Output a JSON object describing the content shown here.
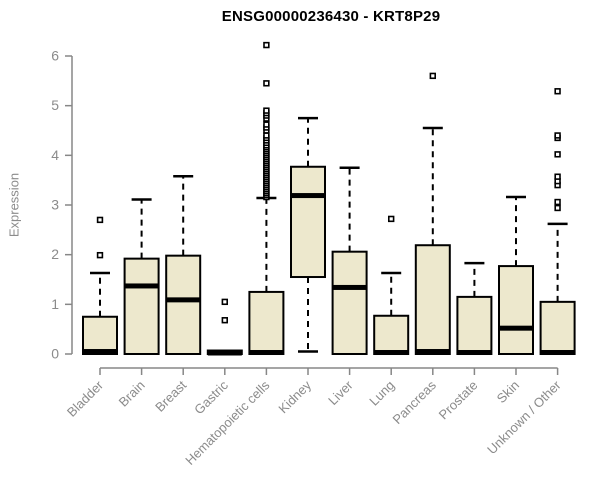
{
  "title": "ENSG00000236430 - KRT8P29",
  "colors": {
    "box_fill": "#ede8cd",
    "box_border": "#000000",
    "median": "#000000",
    "whisker": "#000000",
    "outlier_stroke": "#000000",
    "outlier_fill": "#ffffff",
    "axis_line": "#878787",
    "tick_label": "#8b8b8b",
    "title_color": "#000000",
    "background": "#ffffff"
  },
  "chart_data": {
    "type": "boxplot",
    "title": "ENSG00000236430 - KRT8P29",
    "xlabel": "",
    "ylabel": "Expression",
    "ylim": [
      0,
      6.3
    ],
    "yticks": [
      0,
      1,
      2,
      3,
      4,
      5,
      6
    ],
    "grid": false,
    "legend": "none",
    "categories": [
      "Bladder",
      "Brain",
      "Breast",
      "Gastric",
      "Hematopoietic cells",
      "Kidney",
      "Liver",
      "Lung",
      "Pancreas",
      "Prostate",
      "Skin",
      "Unknown / Other"
    ],
    "series": [
      {
        "name": "Bladder",
        "q1": 0,
        "median": 0.05,
        "q3": 0.75,
        "whisker_low": 0,
        "whisker_high": 1.63,
        "outliers": [
          1.99,
          2.7
        ]
      },
      {
        "name": "Brain",
        "q1": 0,
        "median": 1.37,
        "q3": 1.92,
        "whisker_low": 0,
        "whisker_high": 3.11,
        "outliers": []
      },
      {
        "name": "Breast",
        "q1": 0,
        "median": 1.09,
        "q3": 1.98,
        "whisker_low": 0,
        "whisker_high": 3.58,
        "outliers": []
      },
      {
        "name": "Gastric",
        "q1": 0,
        "median": 0.02,
        "q3": 0.07,
        "whisker_low": 0,
        "whisker_high": 0.07,
        "outliers": [
          0.68,
          1.05
        ]
      },
      {
        "name": "Hematopoietic cells",
        "q1": 0,
        "median": 0.03,
        "q3": 1.25,
        "whisker_low": 0,
        "whisker_high": 3.14,
        "outliers": [
          3.16,
          3.2,
          3.24,
          3.28,
          3.32,
          3.36,
          3.4,
          3.44,
          3.48,
          3.52,
          3.56,
          3.6,
          3.64,
          3.68,
          3.72,
          3.76,
          3.8,
          3.84,
          3.88,
          3.92,
          3.96,
          4.0,
          4.04,
          4.08,
          4.12,
          4.16,
          4.2,
          4.25,
          4.3,
          4.35,
          4.4,
          4.5,
          4.56,
          4.62,
          4.74,
          4.8,
          4.85,
          4.9,
          5.45,
          6.22
        ]
      },
      {
        "name": "Kidney",
        "q1": 1.55,
        "median": 3.19,
        "q3": 3.77,
        "whisker_low": 0.05,
        "whisker_high": 4.75,
        "outliers": []
      },
      {
        "name": "Liver",
        "q1": 0,
        "median": 1.34,
        "q3": 2.06,
        "whisker_low": 0,
        "whisker_high": 3.75,
        "outliers": []
      },
      {
        "name": "Lung",
        "q1": 0,
        "median": 0.03,
        "q3": 0.77,
        "whisker_low": 0,
        "whisker_high": 1.63,
        "outliers": [
          2.72
        ]
      },
      {
        "name": "Pancreas",
        "q1": 0,
        "median": 0.05,
        "q3": 2.19,
        "whisker_low": 0,
        "whisker_high": 4.55,
        "outliers": [
          5.6
        ]
      },
      {
        "name": "Prostate",
        "q1": 0,
        "median": 0.03,
        "q3": 1.15,
        "whisker_low": 0,
        "whisker_high": 1.83,
        "outliers": []
      },
      {
        "name": "Skin",
        "q1": 0,
        "median": 0.52,
        "q3": 1.77,
        "whisker_low": 0,
        "whisker_high": 3.16,
        "outliers": []
      },
      {
        "name": "Unknown / Other",
        "q1": 0,
        "median": 0.03,
        "q3": 1.05,
        "whisker_low": 0,
        "whisker_high": 2.62,
        "outliers": [
          2.94,
          3.06,
          3.4,
          3.48,
          3.57,
          4.02,
          4.35,
          4.4,
          5.29
        ]
      }
    ]
  }
}
